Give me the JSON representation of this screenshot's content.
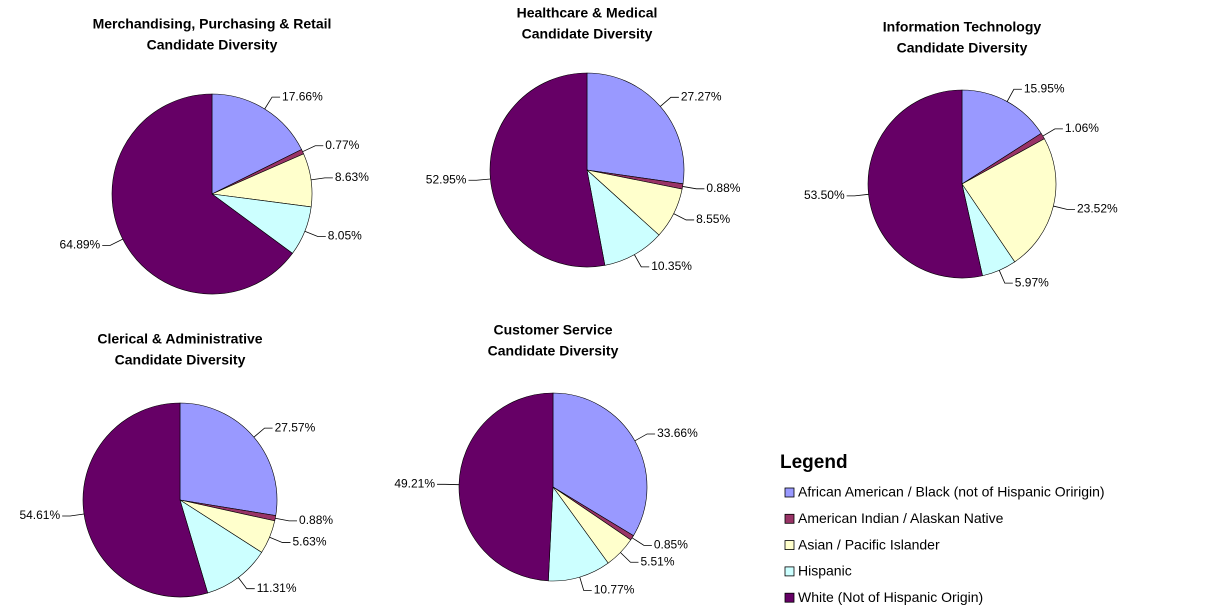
{
  "chart_data": [
    {
      "type": "pie",
      "title": [
        "Merchandising, Purchasing & Retail",
        "Candidate Diversity"
      ],
      "values": [
        17.66,
        0.77,
        8.63,
        8.05,
        64.89
      ],
      "value_labels": [
        "17.66%",
        "0.77%",
        "8.63%",
        "8.05%",
        "64.89%"
      ]
    },
    {
      "type": "pie",
      "title": [
        "Healthcare & Medical",
        "Candidate Diversity"
      ],
      "values": [
        27.27,
        0.88,
        8.55,
        10.35,
        52.95
      ],
      "value_labels": [
        "27.27%",
        "0.88%",
        "8.55%",
        "10.35%",
        "52.95%"
      ]
    },
    {
      "type": "pie",
      "title": [
        "Information Technology",
        "Candidate Diversity"
      ],
      "values": [
        15.95,
        1.06,
        23.52,
        5.97,
        53.5
      ],
      "value_labels": [
        "15.95%",
        "1.06%",
        "23.52%",
        "5.97%",
        "53.50%"
      ]
    },
    {
      "type": "pie",
      "title": [
        "Clerical & Administrative",
        "Candidate Diversity"
      ],
      "values": [
        27.57,
        0.88,
        5.63,
        11.31,
        54.61
      ],
      "value_labels": [
        "27.57%",
        "0.88%",
        "5.63%",
        "11.31%",
        "54.61%"
      ]
    },
    {
      "type": "pie",
      "title": [
        "Customer Service",
        "Candidate Diversity"
      ],
      "values": [
        33.66,
        0.85,
        5.51,
        10.77,
        49.21
      ],
      "value_labels": [
        "33.66%",
        "0.85%",
        "5.51%",
        "10.77%",
        "49.21%"
      ]
    }
  ],
  "legend": {
    "title": "Legend",
    "categories": [
      "African American / Black (not of Hispanic Oririgin)",
      "American Indian / Alaskan Native",
      "Asian / Pacific Islander",
      "Hispanic",
      "White (Not of Hispanic Origin)"
    ],
    "colors": [
      "#9999ff",
      "#993366",
      "#ffffcc",
      "#ccffff",
      "#660066"
    ]
  }
}
